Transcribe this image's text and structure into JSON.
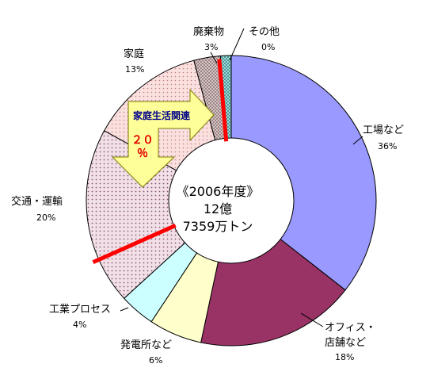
{
  "chart_data": {
    "type": "pie",
    "variant": "donut",
    "title": "",
    "center_lines": [
      "《2006年度》",
      "12億",
      "7359万トン"
    ],
    "slices": [
      {
        "name": "工場など",
        "value": 36,
        "label": "36%",
        "color": "#9999ff",
        "pattern": "solid"
      },
      {
        "name": "オフィス・店舗など",
        "label_lines": [
          "オフィス・",
          "店舗など"
        ],
        "value": 18,
        "label": "18%",
        "color": "#993366",
        "pattern": "solid"
      },
      {
        "name": "発電所など",
        "value": 6,
        "label": "6%",
        "color": "#ffffcc",
        "pattern": "solid"
      },
      {
        "name": "工業プロセス",
        "value": 4,
        "label": "4%",
        "color": "#ccffff",
        "pattern": "solid"
      },
      {
        "name": "交通・運輸",
        "value": 20,
        "label": "20%",
        "color": "#f0dde6",
        "pattern": "dots"
      },
      {
        "name": "家庭",
        "value": 13,
        "label": "13%",
        "color": "#f8dada",
        "pattern": "dots"
      },
      {
        "name": "廃棄物",
        "value": 3,
        "label": "3%",
        "color": "#ccc0c0",
        "pattern": "crosshatch"
      },
      {
        "name": "その他",
        "value": 0,
        "label": "0%",
        "color": "#66cccc",
        "pattern": "grid"
      }
    ],
    "annotation": {
      "text": "家庭生活関連",
      "value": "２０％",
      "value_lines": [
        "２０",
        "％"
      ],
      "fill_color": "#ffff99",
      "border_color": "#cc0000"
    }
  }
}
